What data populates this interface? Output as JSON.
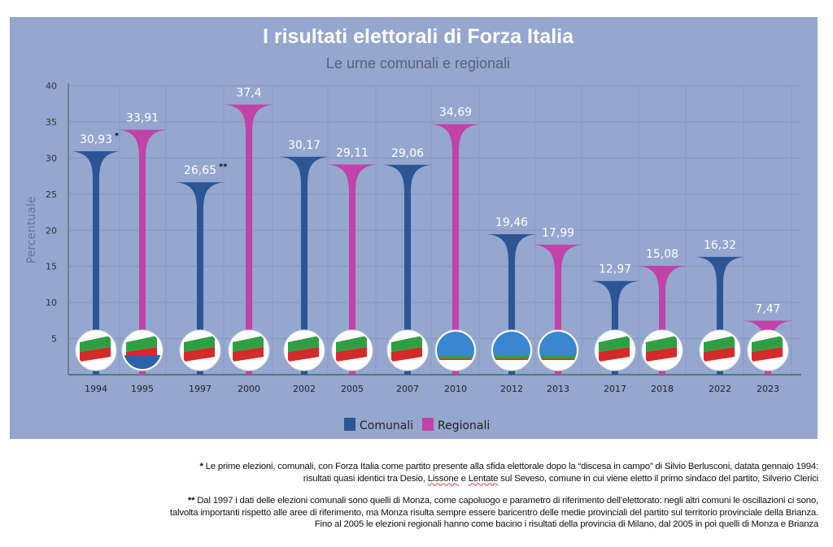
{
  "chart_data": {
    "type": "bar",
    "title": "I  risultati elettorali di Forza Italia",
    "subtitle": "Le urne comunali e regionali",
    "ylabel": "Percentuale",
    "xlabel": "",
    "ylim": [
      0,
      40
    ],
    "yticks": [
      5,
      10,
      15,
      20,
      25,
      30,
      35,
      40
    ],
    "grid": true,
    "legend_position": "bottom",
    "series": [
      {
        "name": "Comunali",
        "color": "#2c5596"
      },
      {
        "name": "Regionali",
        "color": "#c142a8"
      }
    ],
    "points": [
      {
        "year": "1994",
        "value": 30.93,
        "label": "30,93",
        "series": "Comunali",
        "note": "*",
        "logo": "forza-italia"
      },
      {
        "year": "1995",
        "value": 33.91,
        "label": "33,91",
        "series": "Regionali",
        "logo": "forza-italia-polo"
      },
      {
        "year": "1997",
        "value": 26.65,
        "label": "26,65",
        "series": "Comunali",
        "note": "**",
        "logo": "forza-italia"
      },
      {
        "year": "2000",
        "value": 37.4,
        "label": "37,4",
        "series": "Regionali",
        "logo": "forza-italia"
      },
      {
        "year": "2002",
        "value": 30.17,
        "label": "30,17",
        "series": "Comunali",
        "logo": "forza-italia"
      },
      {
        "year": "2005",
        "value": 29.11,
        "label": "29,11",
        "series": "Regionali",
        "logo": "forza-italia"
      },
      {
        "year": "2007",
        "value": 29.06,
        "label": "29,06",
        "series": "Comunali",
        "logo": "forza-italia"
      },
      {
        "year": "2010",
        "value": 34.69,
        "label": "34,69",
        "series": "Regionali",
        "logo": "popolo-della-liberta"
      },
      {
        "year": "2012",
        "value": 19.46,
        "label": "19,46",
        "series": "Comunali",
        "logo": "popolo-della-liberta"
      },
      {
        "year": "2013",
        "value": 17.99,
        "label": "17,99",
        "series": "Regionali",
        "logo": "popolo-della-liberta"
      },
      {
        "year": "2017",
        "value": 12.97,
        "label": "12,97",
        "series": "Comunali",
        "logo": "forza-italia-berlusconi"
      },
      {
        "year": "2018",
        "value": 15.08,
        "label": "15,08",
        "series": "Regionali",
        "logo": "forza-italia-berlusconi-fontana"
      },
      {
        "year": "2022",
        "value": 16.32,
        "label": "16,32",
        "series": "Comunali",
        "logo": "forza-italia-berlusconi"
      },
      {
        "year": "2023",
        "value": 7.47,
        "label": "7,47",
        "series": "Regionali",
        "logo": "forza-italia-berlusconi-fontana"
      }
    ]
  },
  "notes": {
    "note1_marker": "*",
    "note1_a": " Le prime elezioni, comunali, con Forza Italia come partito presente alla sfida elettorale dopo la “discesa in campo” di Silvio Berlusconi, datata gennaio 1994:",
    "note1_b": "risultati quasi identici tra Desio, ",
    "note1_c": "Lissone",
    "note1_d": " e ",
    "note1_e": "Lentate",
    "note1_f": " sul Seveso, comune in cui viene eletto il primo sindaco del partito, Silverio Clerici",
    "note2_marker": "**",
    "note2_a": " Dal 1997 i dati delle elezioni comunali sono quelli di Monza, come capoluogo e parametro di riferimento dell’elettorato: negli altri comuni le oscillazioni ci sono,",
    "note2_b": "talvolta importanti rispetto alle aree di riferimento, ma Monza risulta sempre essere baricentro delle medie provinciali del partito sul territorio provinciale della Brianza.",
    "note2_c": "Fino al 2005 le elezioni regionali hanno come bacino i risultati della provincia di Milano, dal 2005 in poi quelli di Monza e Brianza"
  }
}
